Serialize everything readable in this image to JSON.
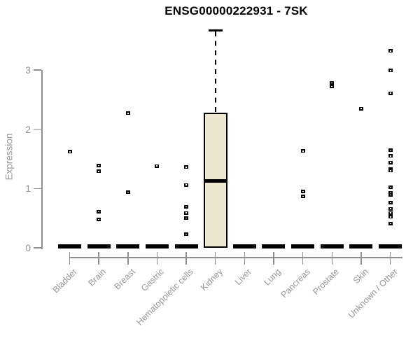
{
  "chart_data": {
    "type": "boxplot",
    "title": "ENSG00000222931 - 7SK",
    "ylabel": "Expression",
    "xlabel": "",
    "yticks": [
      "0",
      "1",
      "2",
      "3"
    ],
    "ylim": [
      0,
      3.8
    ],
    "grid": false,
    "categories": [
      "Bladder",
      "Brain",
      "Breast",
      "Gastric",
      "Hematopoietic cells",
      "Kidney",
      "Liver",
      "Lung",
      "Pancreas",
      "Prostate",
      "Skin",
      "Unknown / Other"
    ],
    "series": [
      {
        "label": "Bladder",
        "q1": 0,
        "median": 0,
        "q3": 0,
        "whisker_low": 0,
        "whisker_high": 0,
        "outliers": [
          1.62
        ]
      },
      {
        "label": "Brain",
        "q1": 0,
        "median": 0,
        "q3": 0,
        "whisker_low": 0,
        "whisker_high": 0,
        "outliers": [
          1.39,
          1.29,
          0.61,
          0.48
        ]
      },
      {
        "label": "Breast",
        "q1": 0,
        "median": 0,
        "q3": 0,
        "whisker_low": 0,
        "whisker_high": 0,
        "outliers": [
          2.27,
          0.94
        ]
      },
      {
        "label": "Gastric",
        "q1": 0,
        "median": 0,
        "q3": 0,
        "whisker_low": 0,
        "whisker_high": 0,
        "outliers": [
          1.38
        ]
      },
      {
        "label": "Hematopoietic cells",
        "q1": 0,
        "median": 0,
        "q3": 0,
        "whisker_low": 0,
        "whisker_high": 0,
        "outliers": [
          1.36,
          1.06,
          0.69,
          0.59,
          0.5,
          0.23
        ]
      },
      {
        "label": "Kidney",
        "q1": 0,
        "median": 1.13,
        "q3": 2.28,
        "whisker_low": 0,
        "whisker_high": 3.67,
        "outliers": []
      },
      {
        "label": "Liver",
        "q1": 0,
        "median": 0,
        "q3": 0,
        "whisker_low": 0,
        "whisker_high": 0,
        "outliers": []
      },
      {
        "label": "Lung",
        "q1": 0,
        "median": 0,
        "q3": 0,
        "whisker_low": 0,
        "whisker_high": 0,
        "outliers": []
      },
      {
        "label": "Pancreas",
        "q1": 0,
        "median": 0,
        "q3": 0,
        "whisker_low": 0,
        "whisker_high": 0,
        "outliers": [
          1.63,
          0.95,
          0.87
        ]
      },
      {
        "label": "Prostate",
        "q1": 0,
        "median": 0,
        "q3": 0,
        "whisker_low": 0,
        "whisker_high": 0,
        "outliers": [
          2.78,
          2.72
        ]
      },
      {
        "label": "Skin",
        "q1": 0,
        "median": 0,
        "q3": 0,
        "whisker_low": 0,
        "whisker_high": 0,
        "outliers": [
          2.35
        ]
      },
      {
        "label": "Unknown / Other",
        "q1": 0,
        "median": 0,
        "q3": 0,
        "whisker_low": 0,
        "whisker_high": 0,
        "outliers": [
          3.32,
          2.99,
          2.61,
          1.65,
          1.55,
          1.44,
          1.33,
          1.3,
          1.02,
          0.93,
          0.89,
          0.76,
          0.66,
          0.59,
          0.52,
          0.41
        ]
      }
    ],
    "colors": {
      "background": "#ffffff",
      "title": "#000000",
      "axis": "#8f8f8f",
      "tick_label": "#969696",
      "box_fill": "#ece8cf",
      "box_stroke": "#000000",
      "point": "#000000"
    }
  }
}
